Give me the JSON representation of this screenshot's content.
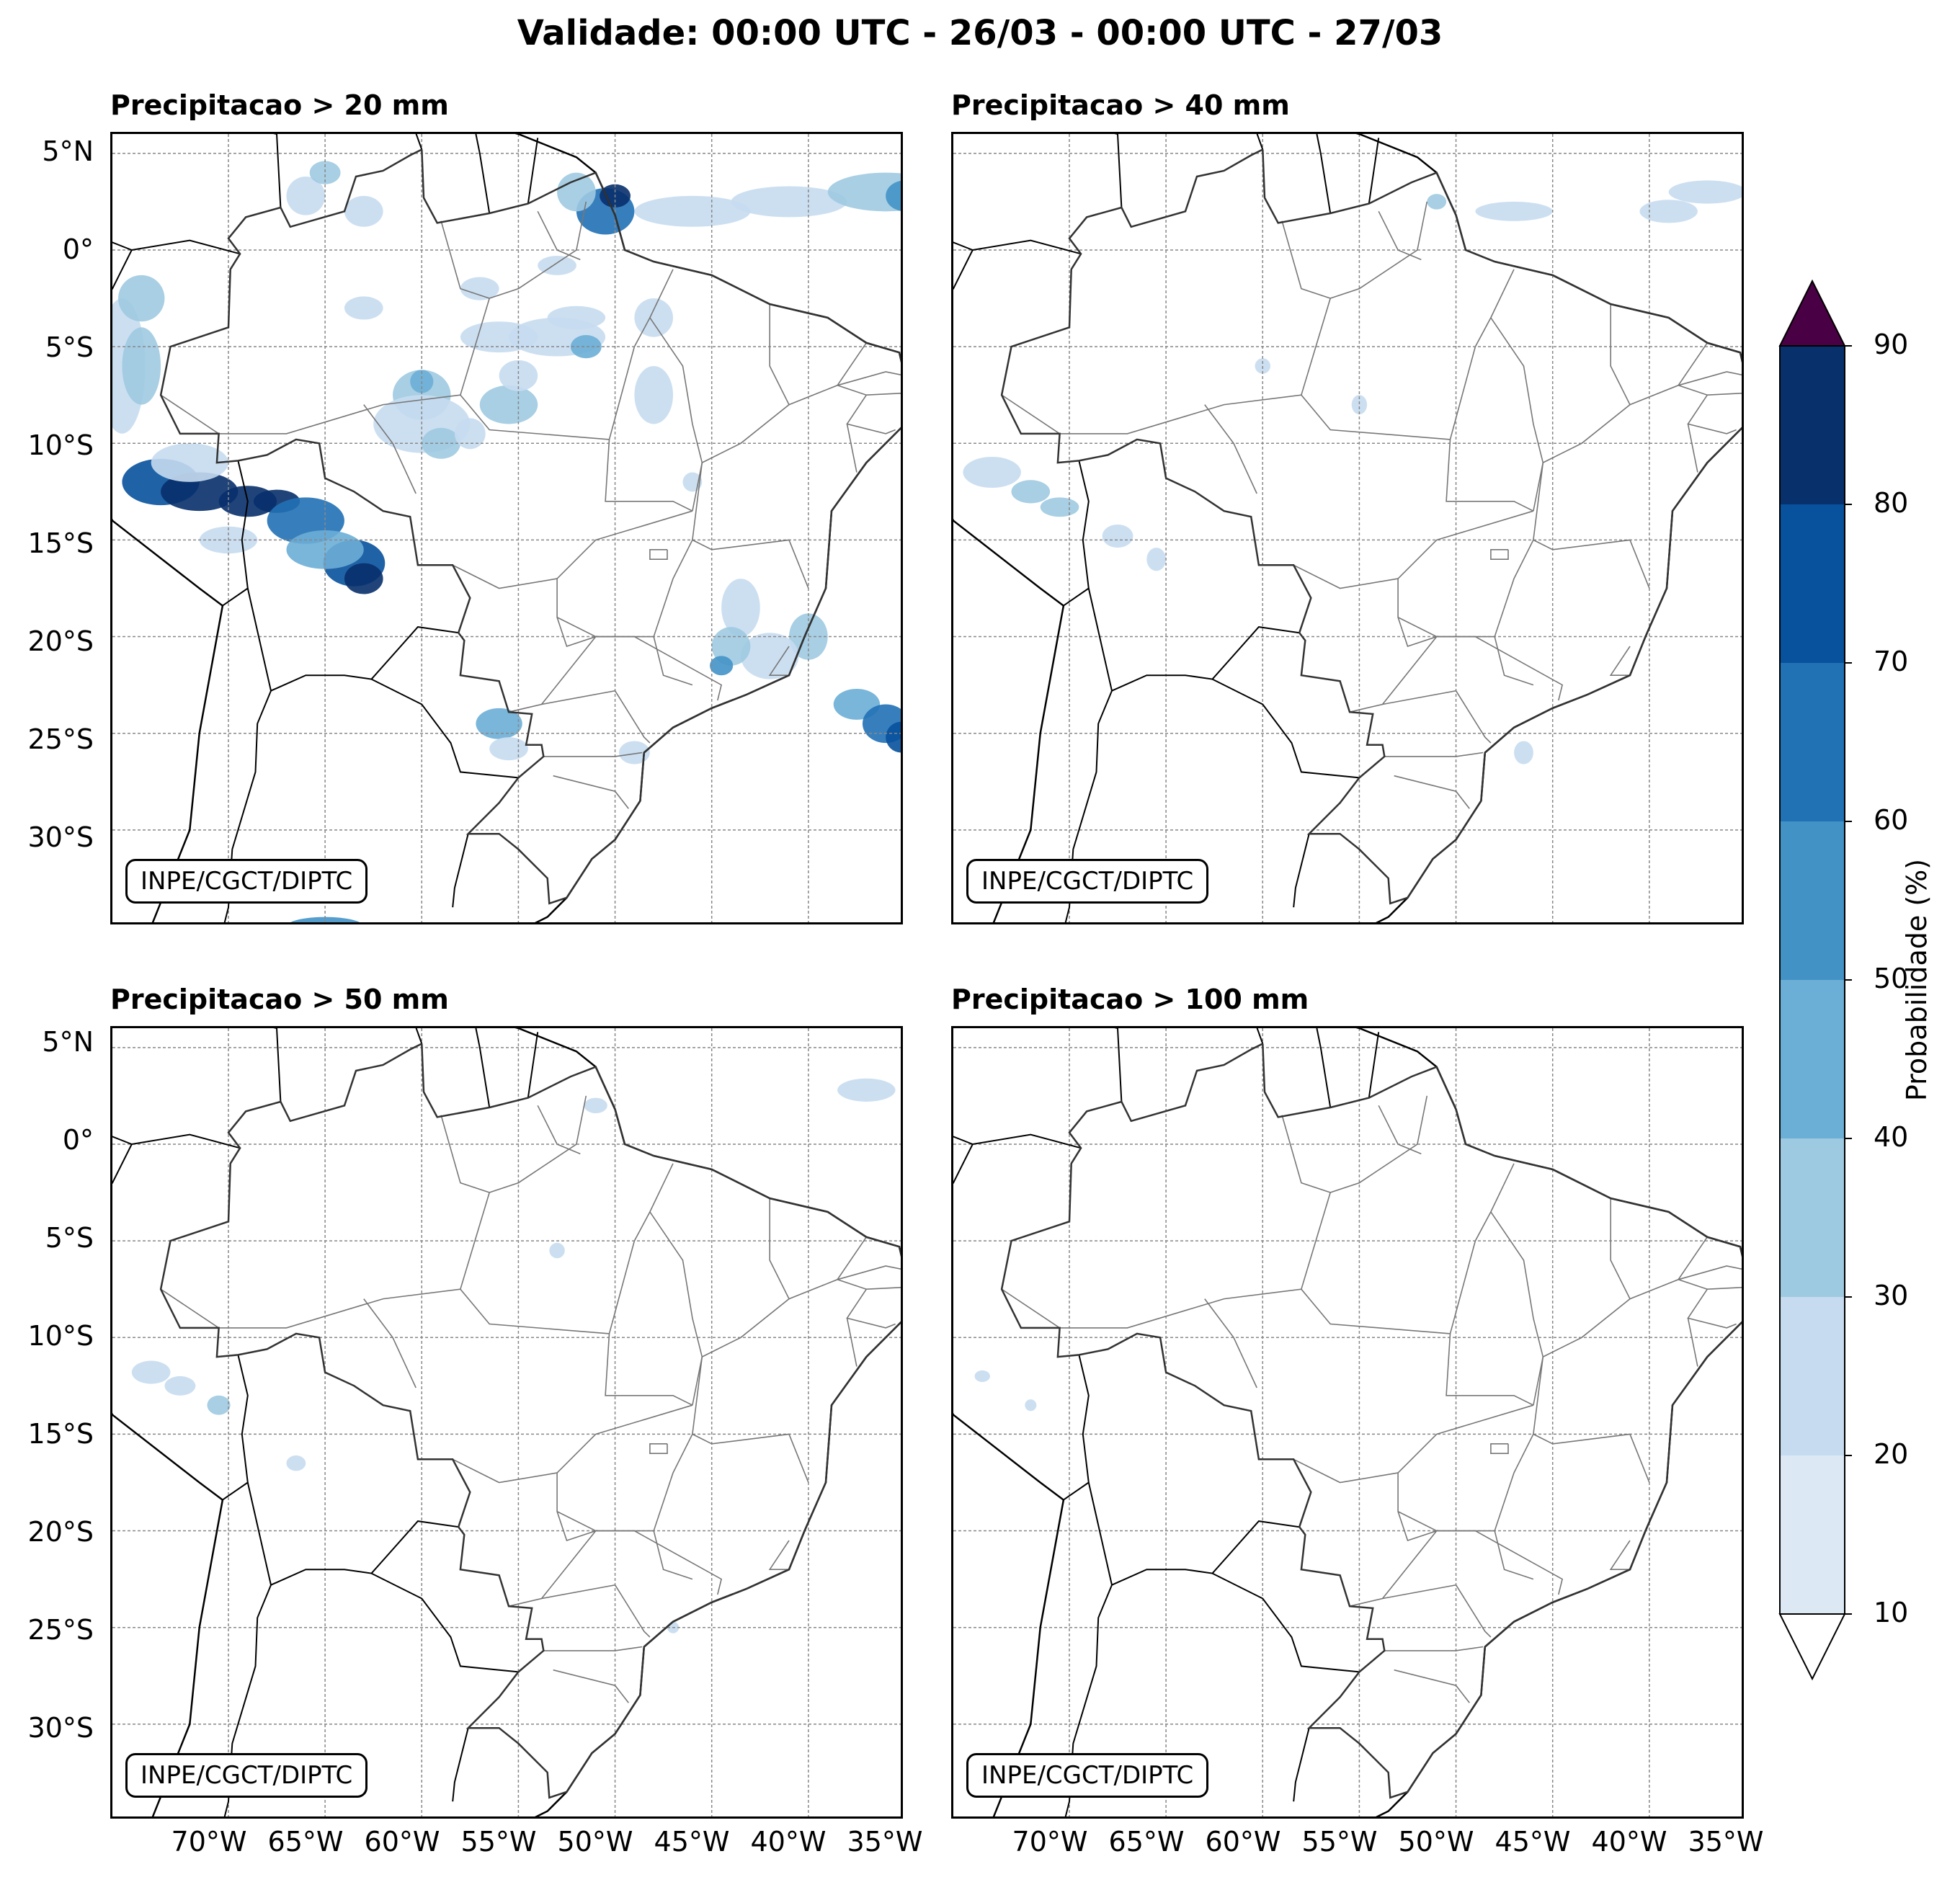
{
  "title": "Validade: 00:00 UTC - 26/03 - 00:00 UTC - 27/03",
  "credit": "INPE/CGCT/DIPTC",
  "panels": [
    {
      "title": "Precipitacao > 20 mm"
    },
    {
      "title": "Precipitacao > 40 mm"
    },
    {
      "title": "Precipitacao > 50 mm"
    },
    {
      "title": "Precipitacao > 100 mm"
    }
  ],
  "lat_ticks": [
    "5°N",
    "0°",
    "5°S",
    "10°S",
    "15°S",
    "20°S",
    "25°S",
    "30°S"
  ],
  "lon_ticks": [
    "70°W",
    "65°W",
    "60°W",
    "55°W",
    "50°W",
    "45°W",
    "40°W",
    "35°W"
  ],
  "colorbar": {
    "label": "Probabilidade (%)",
    "ticks": [
      "10",
      "20",
      "30",
      "40",
      "50",
      "60",
      "70",
      "80",
      "90"
    ],
    "colors": [
      "#dce9f5",
      "#c6dbef",
      "#9ecae1",
      "#6baed6",
      "#4292c6",
      "#2171b5",
      "#08519c",
      "#08306b"
    ],
    "over_color": "#4a0044",
    "under_color": "#ffffff"
  },
  "map_extent": {
    "lon": [
      -76,
      -35
    ],
    "lat": [
      -35,
      6
    ]
  }
}
